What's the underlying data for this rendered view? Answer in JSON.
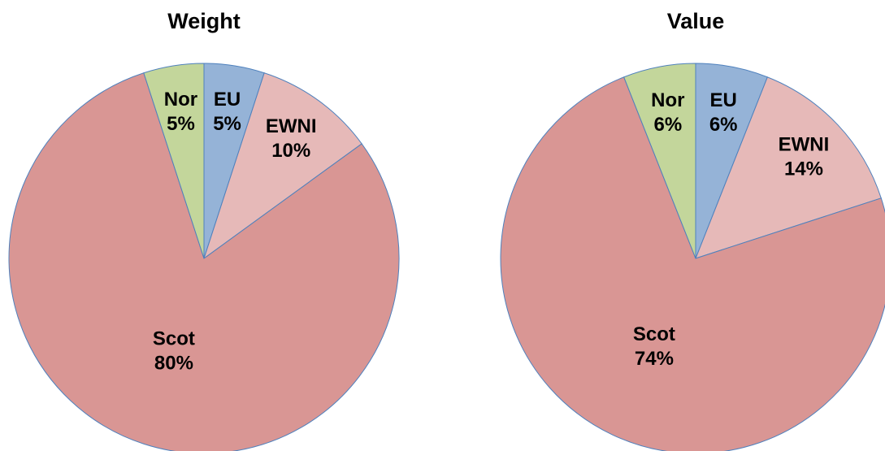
{
  "chart_data": [
    {
      "type": "pie",
      "title": "Weight",
      "categories": [
        "EU",
        "EWNI",
        "Scot",
        "Nor"
      ],
      "values": [
        5,
        10,
        80,
        5
      ],
      "value_labels": [
        "5%",
        "10%",
        "80%",
        "5%"
      ],
      "colors": [
        "#95b3d7",
        "#e6b9b8",
        "#d99694",
        "#c3d69b"
      ]
    },
    {
      "type": "pie",
      "title": "Value",
      "categories": [
        "EU",
        "EWNI",
        "Scot",
        "Nor"
      ],
      "values": [
        6,
        14,
        74,
        6
      ],
      "value_labels": [
        "6%",
        "14%",
        "74%",
        "6%"
      ],
      "colors": [
        "#95b3d7",
        "#e6b9b8",
        "#d99694",
        "#c3d69b"
      ]
    }
  ]
}
